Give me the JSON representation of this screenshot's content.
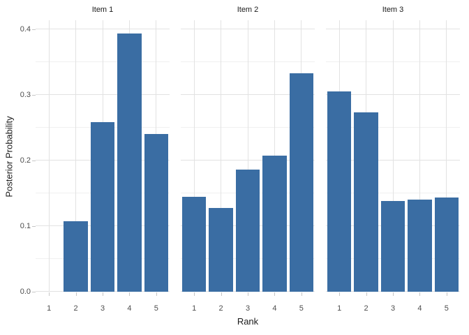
{
  "chart_data": {
    "type": "bar",
    "title": "",
    "xlabel": "Rank",
    "ylabel": "Posterior Probability",
    "categories": [
      "1",
      "2",
      "3",
      "4",
      "5"
    ],
    "facets": [
      {
        "label": "Item 1",
        "values": [
          0.0,
          0.107,
          0.259,
          0.394,
          0.24
        ]
      },
      {
        "label": "Item 2",
        "values": [
          0.145,
          0.128,
          0.186,
          0.207,
          0.333
        ]
      },
      {
        "label": "Item 3",
        "values": [
          0.305,
          0.273,
          0.138,
          0.14,
          0.144
        ]
      }
    ],
    "y_ticks": [
      0.0,
      0.1,
      0.2,
      0.3,
      0.4
    ],
    "y_tick_labels": [
      "0.0",
      "0.1",
      "0.2",
      "0.3",
      "0.4"
    ],
    "y_minor_ticks": [
      0.05,
      0.15,
      0.25,
      0.35
    ],
    "ylim": [
      0,
      0.414
    ],
    "grid": true,
    "legend": false,
    "colors": {
      "bar_fill": "#3a6da3",
      "grid_major": "#e2e2e2",
      "grid_minor": "#f0f0f0",
      "tick_mark": "#c6c6c6",
      "tick_text": "#4d4d4d",
      "title_text": "#1a1a1a",
      "background": "#ffffff"
    }
  }
}
